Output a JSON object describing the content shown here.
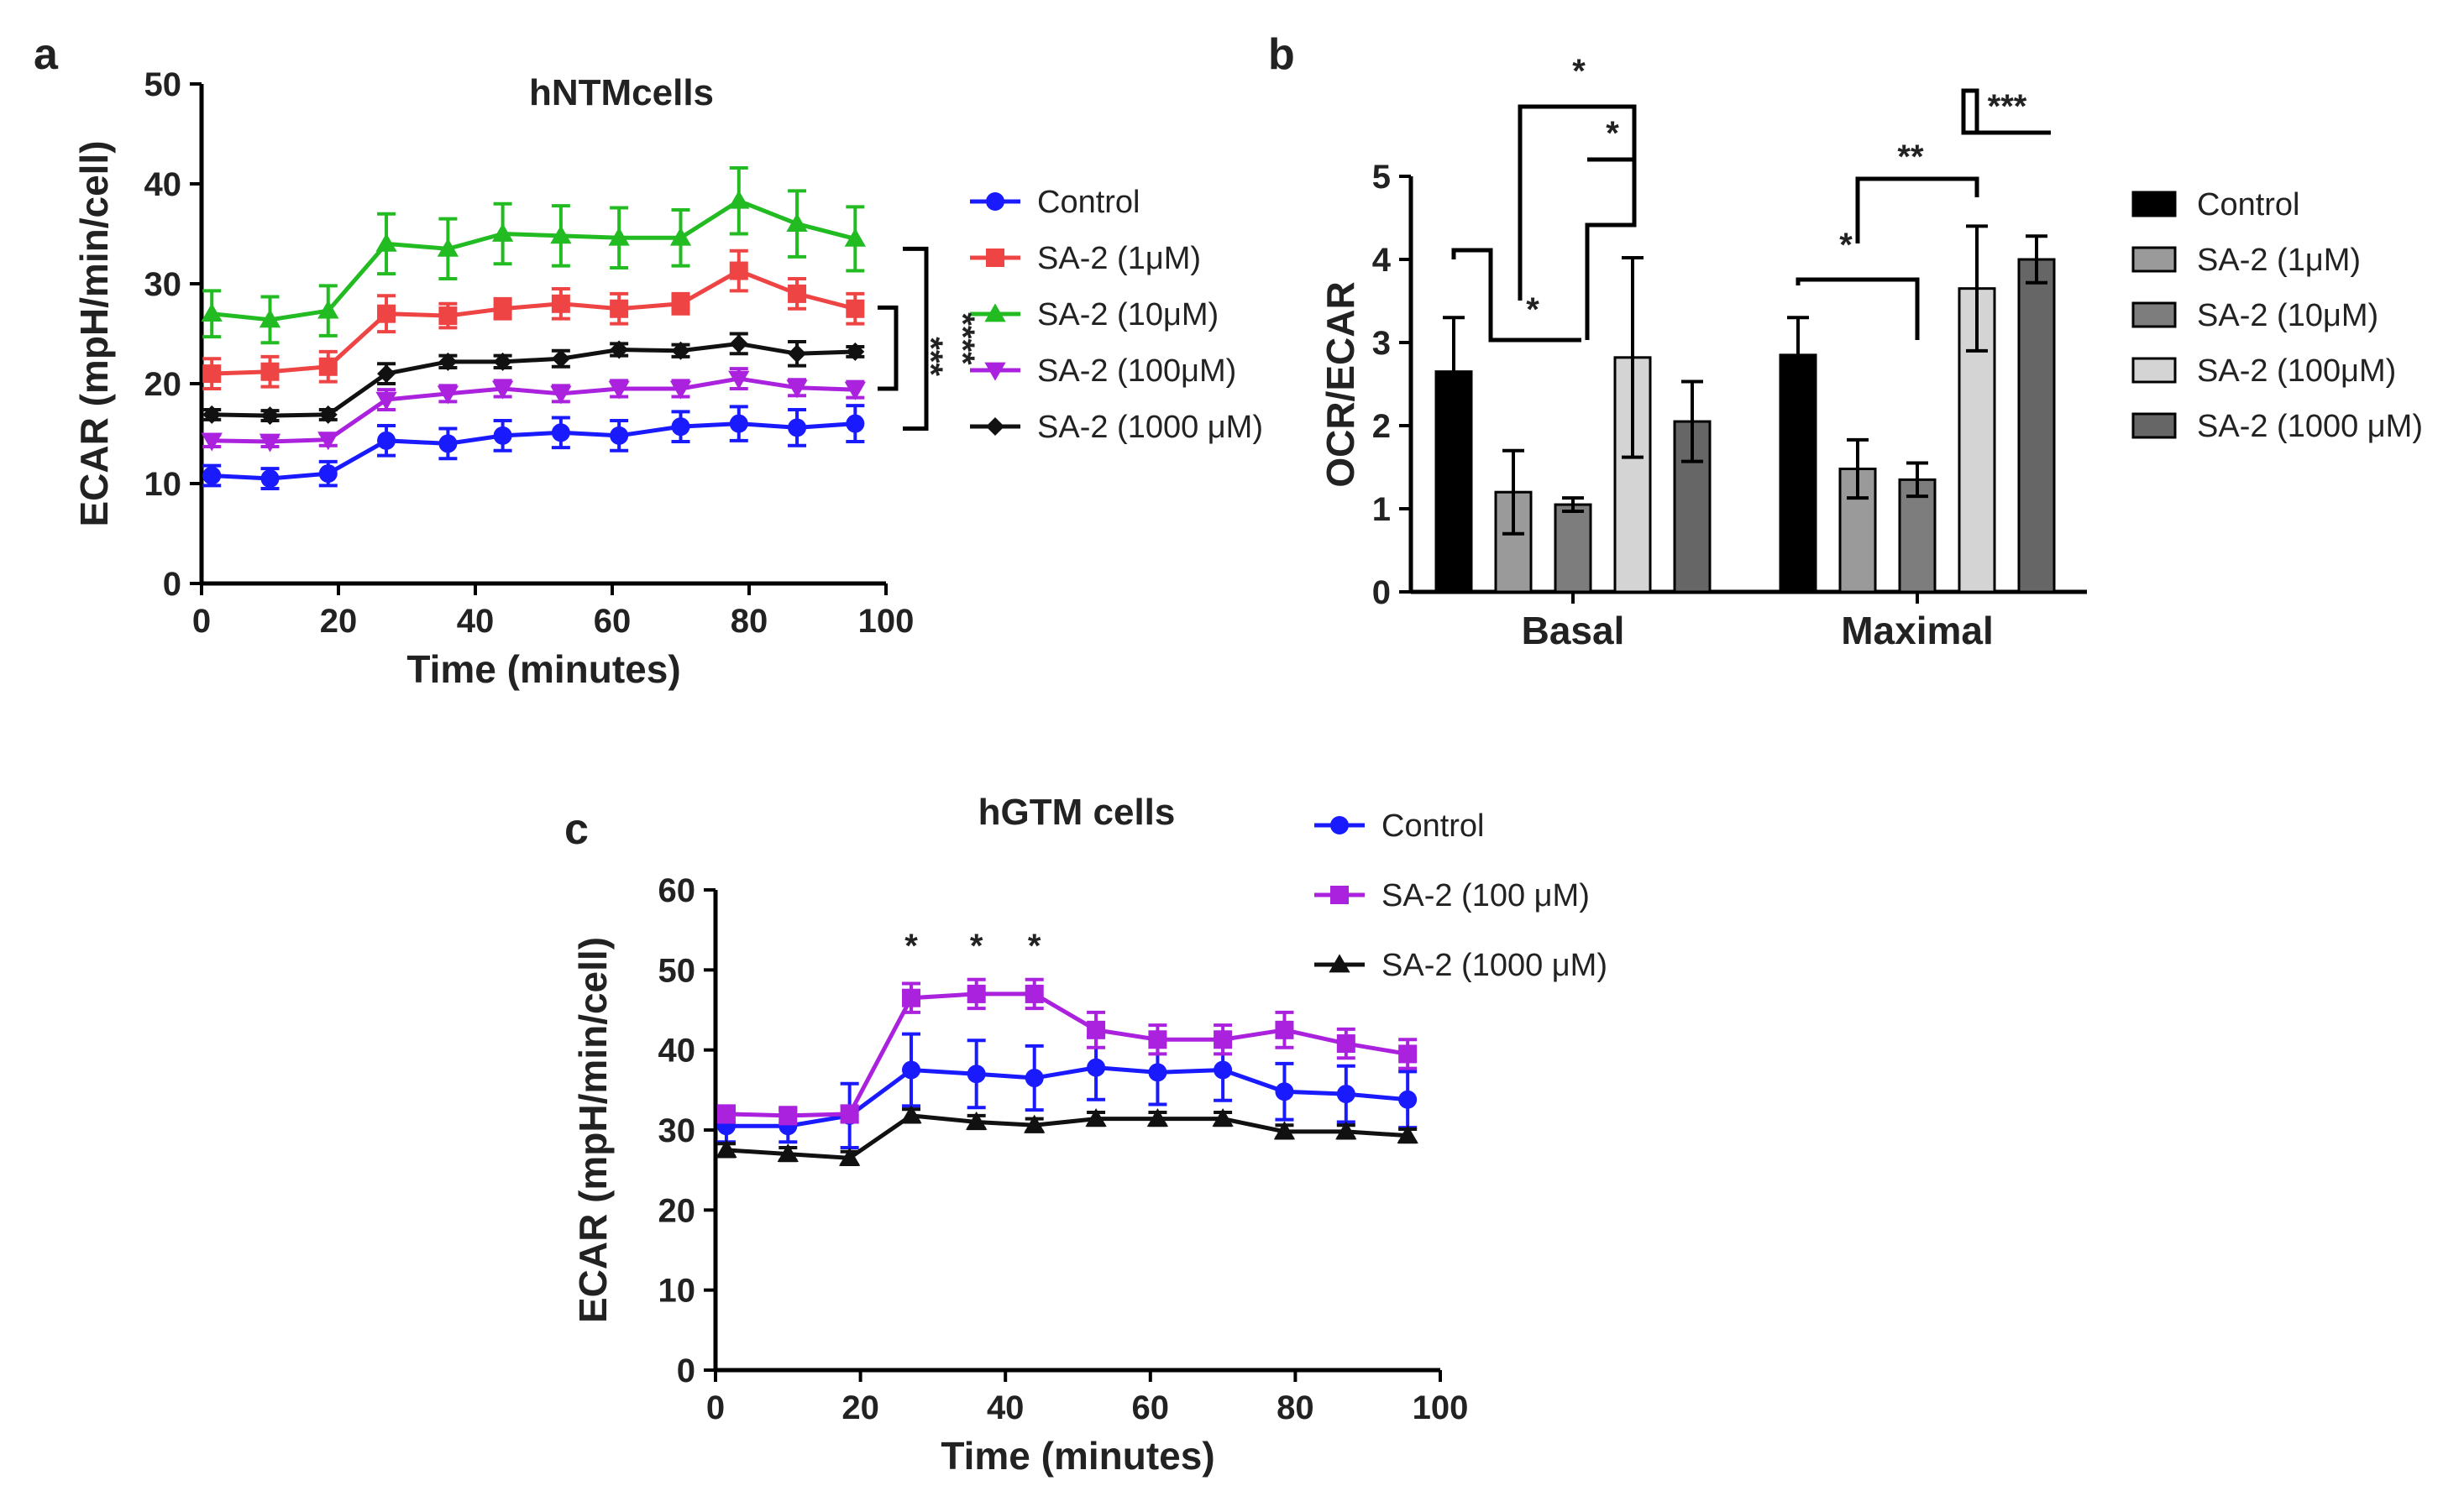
{
  "chart_data": [
    {
      "panel": "a",
      "type": "line",
      "title": "hNTMcells",
      "xlabel": "Time (minutes)",
      "ylabel": "ECAR (mpH/min/cell)",
      "xlim": [
        0,
        100
      ],
      "ylim": [
        0,
        50
      ],
      "xticks": [
        0,
        20,
        40,
        60,
        80,
        100
      ],
      "yticks": [
        0,
        10,
        20,
        30,
        40,
        50
      ],
      "x": [
        1.5,
        10,
        18.5,
        27,
        36,
        44,
        52.5,
        61,
        70,
        78.5,
        87,
        95.5
      ],
      "series": [
        {
          "name": "Control",
          "color": "#1a1aff",
          "marker": "circle",
          "values": [
            10.8,
            10.5,
            11,
            14.3,
            14,
            14.8,
            15.1,
            14.8,
            15.7,
            16,
            15.6,
            16
          ],
          "errors": [
            1,
            1,
            1.2,
            1.5,
            1.5,
            1.5,
            1.5,
            1.5,
            1.5,
            1.7,
            1.8,
            1.8
          ]
        },
        {
          "name": "SA-2 (1μM)",
          "color": "#ee4444",
          "marker": "square",
          "values": [
            21,
            21.2,
            21.7,
            27,
            26.8,
            27.5,
            28,
            27.5,
            28,
            31.3,
            29,
            27.5
          ],
          "errors": [
            1.5,
            1.5,
            1.5,
            1.8,
            1.2,
            1,
            1.5,
            1.5,
            1,
            2,
            1.5,
            1.5
          ]
        },
        {
          "name": "SA-2 (10μM)",
          "color": "#22bb22",
          "marker": "triangle",
          "values": [
            27,
            26.4,
            27.3,
            34,
            33.5,
            35,
            34.8,
            34.6,
            34.6,
            38.3,
            36,
            34.5
          ],
          "errors": [
            2.3,
            2.3,
            2.5,
            3,
            3,
            3,
            3,
            3,
            2.8,
            3.3,
            3.3,
            3.2
          ]
        },
        {
          "name": "SA-2 (100μM)",
          "color": "#aa22dd",
          "marker": "triangle-down",
          "values": [
            14.3,
            14.2,
            14.4,
            18.4,
            19,
            19.5,
            19,
            19.5,
            19.5,
            20.5,
            19.6,
            19.4
          ],
          "errors": [
            0.6,
            0.5,
            0.6,
            1,
            0.8,
            0.8,
            0.8,
            0.8,
            0.8,
            1,
            0.8,
            0.8
          ]
        },
        {
          "name": "SA-2 (1000 μM)",
          "color": "#111111",
          "marker": "diamond",
          "values": [
            16.9,
            16.8,
            16.9,
            21,
            22.2,
            22.2,
            22.5,
            23.4,
            23.3,
            24,
            23,
            23.2
          ],
          "errors": [
            0.5,
            0.5,
            0.5,
            1,
            0.6,
            0.6,
            0.8,
            0.6,
            0.6,
            1,
            1.2,
            0.5
          ]
        }
      ],
      "annotations": [
        "****",
        "***"
      ]
    },
    {
      "panel": "b",
      "type": "bar",
      "ylabel": "OCR/ECAR",
      "ylim": [
        0,
        5
      ],
      "yticks": [
        0,
        1,
        2,
        3,
        4,
        5
      ],
      "categories": [
        "Basal",
        "Maximal"
      ],
      "series": [
        {
          "name": "Control",
          "color": "#000000",
          "values": [
            2.65,
            2.85
          ],
          "errors": [
            0.65,
            0.45
          ]
        },
        {
          "name": "SA-2 (1μM)",
          "color": "#9a9a9a",
          "values": [
            1.2,
            1.48
          ],
          "errors": [
            0.5,
            0.35
          ]
        },
        {
          "name": "SA-2 (10μM)",
          "color": "#7d7d7d",
          "values": [
            1.05,
            1.35
          ],
          "errors": [
            0.08,
            0.2
          ]
        },
        {
          "name": "SA-2 (100μM)",
          "color": "#d4d4d4",
          "values": [
            2.82,
            3.65
          ],
          "errors": [
            1.2,
            0.75
          ]
        },
        {
          "name": "SA-2 (1000 μM)",
          "color": "#666666",
          "values": [
            2.05,
            4.0
          ],
          "errors": [
            0.48,
            0.28
          ]
        }
      ],
      "annotations": [
        "*",
        "*",
        "*",
        "*",
        "**",
        "***"
      ]
    },
    {
      "panel": "c",
      "type": "line",
      "title": "hGTM cells",
      "xlabel": "Time (minutes)",
      "ylabel": "ECAR (mpH/min/cell)",
      "xlim": [
        0,
        100
      ],
      "ylim": [
        0,
        60
      ],
      "xticks": [
        0,
        20,
        40,
        60,
        80,
        100
      ],
      "yticks": [
        0,
        10,
        20,
        30,
        40,
        50,
        60
      ],
      "x": [
        1.5,
        10,
        18.5,
        27,
        36,
        44,
        52.5,
        61,
        70,
        78.5,
        87,
        95.5
      ],
      "series": [
        {
          "name": "Control",
          "color": "#1a1aff",
          "marker": "circle",
          "values": [
            30.5,
            30.5,
            31.8,
            37.5,
            37,
            36.5,
            37.8,
            37.2,
            37.5,
            34.8,
            34.5,
            33.8
          ],
          "errors": [
            2,
            2,
            4,
            4.5,
            4.2,
            4,
            4,
            4,
            3.8,
            3.5,
            3.5,
            3.5
          ]
        },
        {
          "name": "SA-2 (100 μM)",
          "color": "#aa22dd",
          "marker": "square",
          "values": [
            32,
            31.8,
            32,
            46.5,
            47,
            47,
            42.5,
            41.3,
            41.3,
            42.5,
            40.8,
            39.5
          ],
          "errors": [
            1,
            1,
            1,
            1.8,
            1.8,
            1.8,
            2.2,
            1.8,
            1.8,
            2.2,
            1.8,
            1.8
          ]
        },
        {
          "name": "SA-2 (1000 μM)",
          "color": "#111111",
          "marker": "triangle",
          "values": [
            27.5,
            27,
            26.5,
            31.8,
            31,
            30.6,
            31.4,
            31.4,
            31.4,
            29.8,
            29.8,
            29.3
          ],
          "errors": [
            0.8,
            0.8,
            0.8,
            0.8,
            0.8,
            0.8,
            0.8,
            0.8,
            0.8,
            0.8,
            0.8,
            0.8
          ]
        }
      ],
      "annotations": [
        "*",
        "*",
        "*"
      ]
    }
  ]
}
